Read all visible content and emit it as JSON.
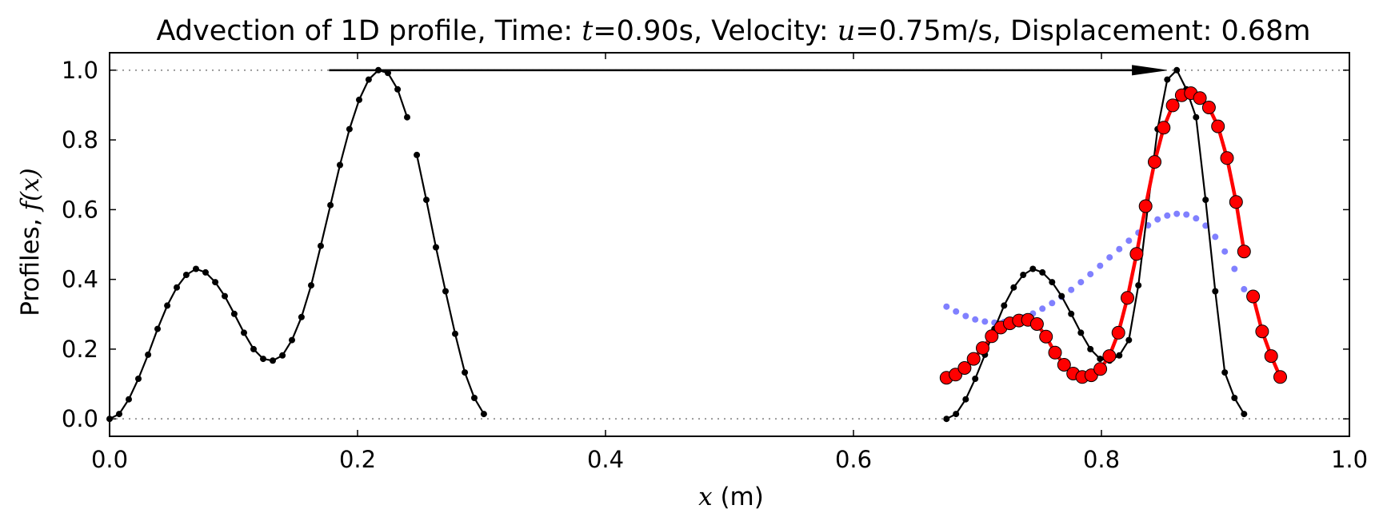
{
  "chart_data": {
    "type": "line",
    "title": {
      "prefix": "Advection of 1D profile, Time: ",
      "t_symbol": "t",
      "t_text": "=0.90s, Velocity: ",
      "u_symbol": "u",
      "u_text": "=0.75m/s, Displacement: 0.68m"
    },
    "xlabel": {
      "symbol": "x",
      "text": " (m)"
    },
    "ylabel": {
      "text": "Profiles, ",
      "symbol": "f(x)"
    },
    "xlim": [
      0,
      1
    ],
    "ylim": [
      -0.05,
      1.05
    ],
    "xticks": [
      0.0,
      0.2,
      0.4,
      0.6,
      0.8,
      1.0
    ],
    "xtick_labels": [
      "0.0",
      "0.2",
      "0.4",
      "0.6",
      "0.8",
      "1.0"
    ],
    "yticks": [
      0.0,
      0.2,
      0.4,
      0.6,
      0.8,
      1.0
    ],
    "ytick_labels": [
      "0.0",
      "0.2",
      "0.4",
      "0.6",
      "0.8",
      "1.0"
    ],
    "reference_lines": [
      0.0,
      1.0
    ],
    "displacement_arrow": {
      "from": [
        0.177,
        1.0
      ],
      "to": [
        0.852,
        1.0
      ]
    },
    "series": [
      {
        "id": "initial",
        "color": "#000000",
        "x": [
          0.0,
          0.00774,
          0.0155,
          0.0232,
          0.031,
          0.0387,
          0.0465,
          0.0542,
          0.0619,
          0.0697,
          0.0774,
          0.0852,
          0.0929,
          0.1006,
          0.1084,
          0.1161,
          0.1239,
          0.1316,
          0.1394,
          0.1471,
          0.1548,
          0.1626,
          0.1703,
          0.1781,
          0.1858,
          0.1935,
          0.2013,
          0.209,
          0.2168,
          0.2245,
          0.2323,
          0.24
        ],
        "y": [
          0.0,
          0.014,
          0.056,
          0.115,
          0.184,
          0.258,
          0.325,
          0.377,
          0.413,
          0.43,
          0.42,
          0.392,
          0.352,
          0.301,
          0.247,
          0.2,
          0.172,
          0.167,
          0.182,
          0.226,
          0.292,
          0.383,
          0.496,
          0.613,
          0.728,
          0.831,
          0.915,
          0.973,
          1.0,
          0.992,
          0.945,
          0.865
        ]
      },
      {
        "id": "initial-tail",
        "color": "#000000",
        "x": [
          0.2478,
          0.2555,
          0.2632,
          0.271,
          0.2787,
          0.2865,
          0.2942,
          0.3019
        ],
        "y": [
          0.757,
          0.628,
          0.492,
          0.366,
          0.244,
          0.133,
          0.06,
          0.014
        ]
      },
      {
        "id": "exact-shifted",
        "color": "#000000",
        "x": [
          0.675,
          0.6827,
          0.6905,
          0.6982,
          0.706,
          0.7137,
          0.7215,
          0.7292,
          0.7369,
          0.7447,
          0.7524,
          0.7602,
          0.7679,
          0.7756,
          0.7834,
          0.7911,
          0.7989,
          0.8066,
          0.8144,
          0.8221,
          0.8298,
          0.8376,
          0.8453,
          0.8531,
          0.8608,
          0.8685,
          0.8763,
          0.884,
          0.8918,
          0.8995,
          0.9073,
          0.915
        ],
        "y": [
          0.0,
          0.014,
          0.056,
          0.115,
          0.184,
          0.258,
          0.325,
          0.377,
          0.413,
          0.43,
          0.42,
          0.392,
          0.352,
          0.301,
          0.247,
          0.2,
          0.172,
          0.167,
          0.182,
          0.226,
          0.383,
          0.613,
          0.831,
          0.973,
          1.0,
          0.945,
          0.865,
          0.628,
          0.366,
          0.133,
          0.06,
          0.014
        ]
      },
      {
        "id": "numerical-red",
        "color": "#ff0000",
        "x": [
          0.675,
          0.6823,
          0.6896,
          0.6969,
          0.7042,
          0.7115,
          0.7188,
          0.7261,
          0.7334,
          0.7407,
          0.748,
          0.7553,
          0.7626,
          0.7699,
          0.7772,
          0.7845,
          0.7918,
          0.7991,
          0.8064,
          0.8137,
          0.821,
          0.8283,
          0.8356,
          0.8429,
          0.8502,
          0.8575,
          0.8648,
          0.8721,
          0.8794,
          0.8867,
          0.894,
          0.9013,
          0.9086,
          0.915
        ],
        "y": [
          0.118,
          0.127,
          0.146,
          0.172,
          0.203,
          0.237,
          0.262,
          0.274,
          0.282,
          0.284,
          0.272,
          0.236,
          0.19,
          0.155,
          0.13,
          0.12,
          0.125,
          0.143,
          0.18,
          0.247,
          0.347,
          0.473,
          0.61,
          0.737,
          0.835,
          0.899,
          0.928,
          0.934,
          0.92,
          0.893,
          0.839,
          0.748,
          0.622,
          0.48
        ]
      },
      {
        "id": "numerical-red-tail",
        "color": "#ff0000",
        "x": [
          0.9223,
          0.9296,
          0.9369,
          0.9442
        ],
        "y": [
          0.351,
          0.251,
          0.18,
          0.12
        ]
      },
      {
        "id": "numerical-blue",
        "color": "#4a4aff",
        "x": [
          0.675,
          0.6827,
          0.6905,
          0.6982,
          0.706,
          0.7137,
          0.7215,
          0.7292,
          0.7369,
          0.7447,
          0.7524,
          0.7602,
          0.7679,
          0.7756,
          0.7834,
          0.7911,
          0.7989,
          0.8066,
          0.8144,
          0.8221,
          0.8298,
          0.8376,
          0.8453,
          0.8531,
          0.8608,
          0.8685,
          0.8763,
          0.884,
          0.8918,
          0.8995,
          0.9073,
          0.915
        ],
        "y": [
          0.322,
          0.308,
          0.295,
          0.285,
          0.279,
          0.276,
          0.278,
          0.283,
          0.291,
          0.302,
          0.316,
          0.332,
          0.35,
          0.37,
          0.392,
          0.415,
          0.439,
          0.463,
          0.487,
          0.511,
          0.534,
          0.555,
          0.572,
          0.583,
          0.588,
          0.586,
          0.575,
          0.554,
          0.522,
          0.48,
          0.43,
          0.372
        ]
      }
    ]
  }
}
